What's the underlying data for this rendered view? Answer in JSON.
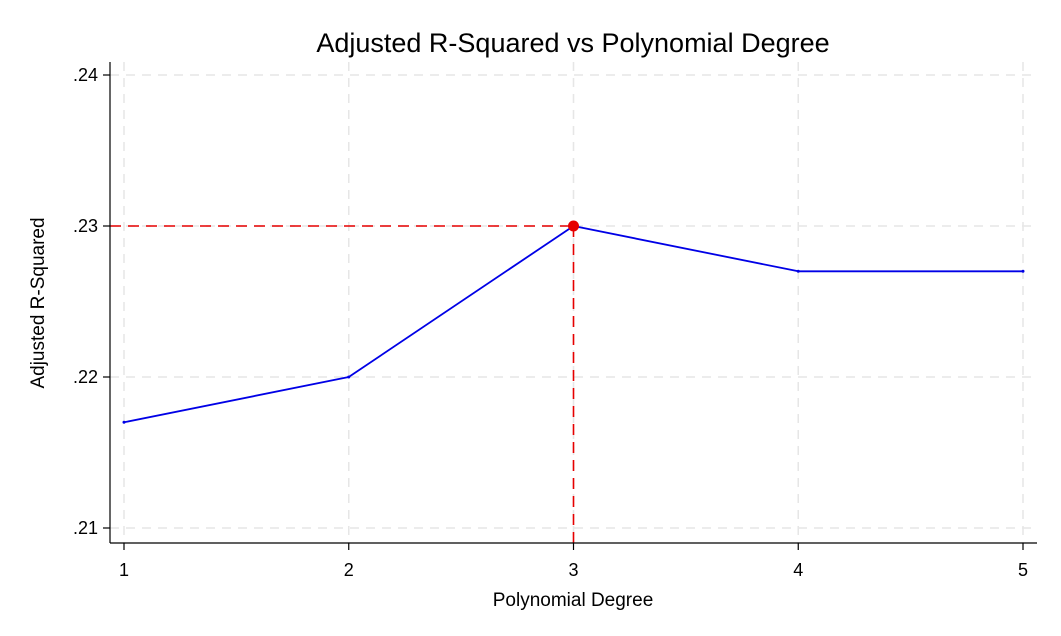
{
  "chart_data": {
    "type": "line",
    "title": "Adjusted R-Squared vs Polynomial Degree",
    "xlabel": "Polynomial Degree",
    "ylabel": "Adjusted R-Squared",
    "x": [
      1,
      2,
      3,
      4,
      5
    ],
    "series": [
      {
        "values": [
          0.217,
          0.22,
          0.23,
          0.227,
          0.227
        ],
        "color": "#0000e6"
      }
    ],
    "highlight": {
      "x": 3,
      "y": 0.23,
      "color": "#e60000"
    },
    "xlim": [
      1,
      5
    ],
    "ylim": [
      0.21,
      0.24
    ],
    "xticks": [
      1,
      2,
      3,
      4,
      5
    ],
    "xtick_labels": [
      "1",
      "2",
      "3",
      "4",
      "5"
    ],
    "yticks": [
      0.21,
      0.22,
      0.23,
      0.24
    ],
    "ytick_labels": [
      ".21",
      ".22",
      ".23",
      ".24"
    ],
    "grid": true,
    "legend": false,
    "grid_color": "#e6e6e6",
    "axis_color": "#000000"
  }
}
